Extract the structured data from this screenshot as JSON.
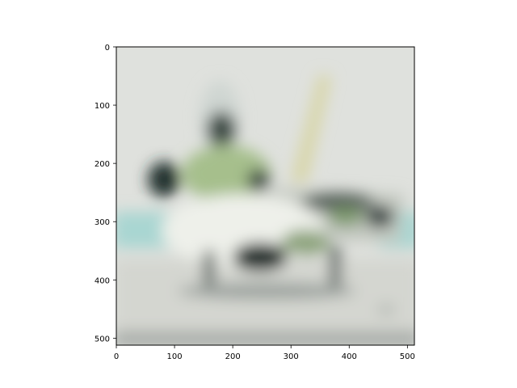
{
  "chart_data": {
    "type": "heatmap",
    "description_visible": "blurred image shown with matplotlib imshow",
    "x": {
      "ticks": [
        0,
        100,
        200,
        300,
        400,
        500
      ],
      "range": [
        0,
        512
      ]
    },
    "y": {
      "ticks": [
        0,
        100,
        200,
        300,
        400,
        500
      ],
      "range": [
        0,
        512
      ],
      "inverted": true
    },
    "grid": false,
    "colors": {
      "background": "#dfe1dd",
      "ground": "#d4d6d0",
      "sky_band": "#a9d6d2",
      "body_light": "#eef0ea",
      "body_green": "#a6bf8c",
      "canopy": "#cfd6d2",
      "wing": "#c3c8c0",
      "dark": "#22302e",
      "tail": "#d8d6a8",
      "shadow": "#9aa09c"
    }
  }
}
